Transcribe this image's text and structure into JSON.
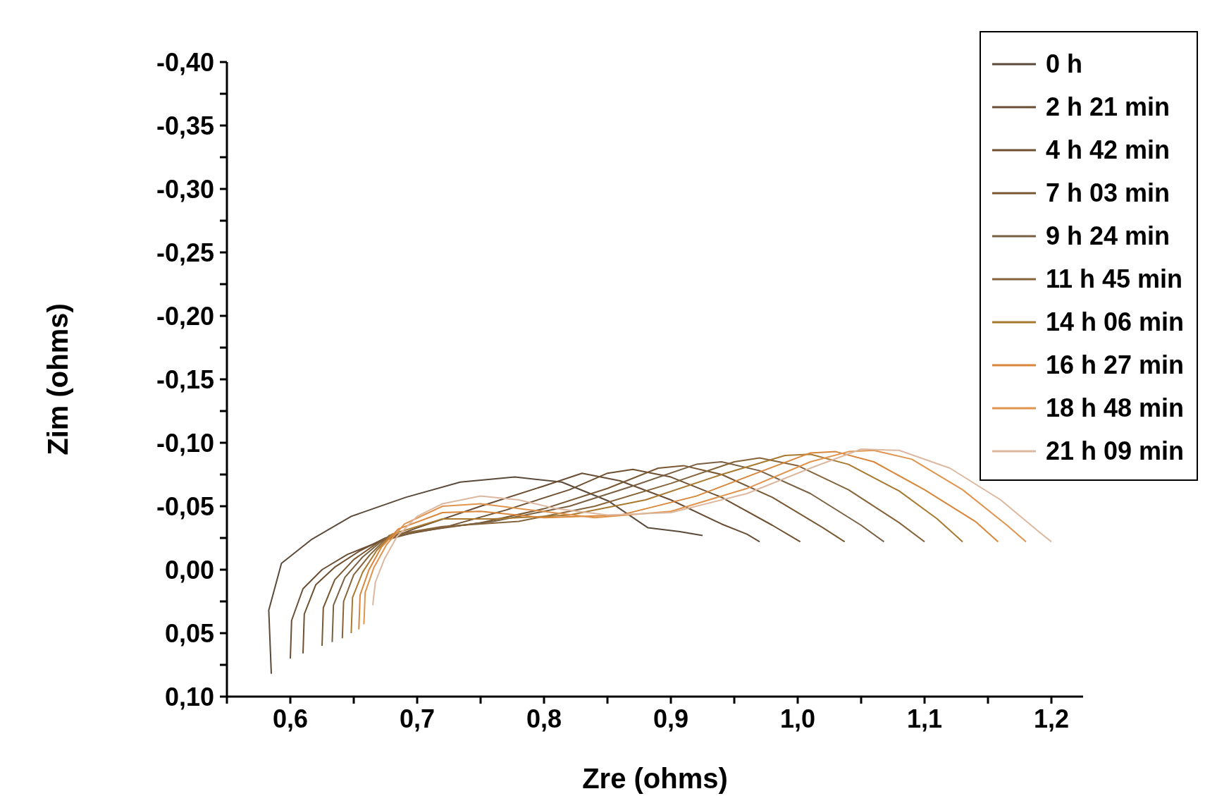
{
  "chart_data": {
    "type": "line",
    "xlabel": "Zre (ohms)",
    "ylabel": "Zim (ohms)",
    "xlim": [
      0.55,
      1.225
    ],
    "ylim": [
      0.1,
      -0.4
    ],
    "xticks": [
      {
        "value": 0.55,
        "label": null
      },
      {
        "value": 0.6,
        "label": "0,6"
      },
      {
        "value": 0.65,
        "label": null
      },
      {
        "value": 0.7,
        "label": "0,7"
      },
      {
        "value": 0.75,
        "label": null
      },
      {
        "value": 0.8,
        "label": "0,8"
      },
      {
        "value": 0.85,
        "label": null
      },
      {
        "value": 0.9,
        "label": "0,9"
      },
      {
        "value": 0.95,
        "label": null
      },
      {
        "value": 1.0,
        "label": "1,0"
      },
      {
        "value": 1.05,
        "label": null
      },
      {
        "value": 1.1,
        "label": "1,1"
      },
      {
        "value": 1.15,
        "label": null
      },
      {
        "value": 1.2,
        "label": "1,2"
      }
    ],
    "yticks": [
      {
        "value": -0.4,
        "label": "-0,40"
      },
      {
        "value": -0.375,
        "label": null
      },
      {
        "value": -0.35,
        "label": "-0,35"
      },
      {
        "value": -0.325,
        "label": null
      },
      {
        "value": -0.3,
        "label": "-0,30"
      },
      {
        "value": -0.275,
        "label": null
      },
      {
        "value": -0.25,
        "label": "-0,25"
      },
      {
        "value": -0.225,
        "label": null
      },
      {
        "value": -0.2,
        "label": "-0,20"
      },
      {
        "value": -0.175,
        "label": null
      },
      {
        "value": -0.15,
        "label": "-0,15"
      },
      {
        "value": -0.125,
        "label": null
      },
      {
        "value": -0.1,
        "label": "-0,10"
      },
      {
        "value": -0.075,
        "label": null
      },
      {
        "value": -0.05,
        "label": "-0,05"
      },
      {
        "value": -0.025,
        "label": null
      },
      {
        "value": 0,
        "label": "0,00"
      },
      {
        "value": 0.025,
        "label": null
      },
      {
        "value": 0.05,
        "label": "0,05"
      },
      {
        "value": 0.075,
        "label": null
      },
      {
        "value": 0.1,
        "label": "0,10"
      }
    ],
    "legend": "top right",
    "line_style": "solid",
    "series": [
      {
        "name": "0 h",
        "color": "#5b4a3a",
        "x": [
          0.585,
          0.583,
          0.593,
          0.617,
          0.648,
          0.691,
          0.734,
          0.777,
          0.814,
          0.851,
          0.882,
          0.907,
          0.925
        ],
        "values": [
          0.082,
          0.032,
          -0.005,
          -0.024,
          -0.042,
          -0.057,
          -0.069,
          -0.073,
          -0.069,
          -0.054,
          -0.033,
          -0.03,
          -0.027
        ]
      },
      {
        "name": "2 h 21 min",
        "color": "#694d34",
        "x": [
          0.6,
          0.601,
          0.61,
          0.625,
          0.645,
          0.67,
          0.7,
          0.75,
          0.8,
          0.83,
          0.86,
          0.9,
          0.94,
          0.96,
          0.97
        ],
        "values": [
          0.07,
          0.04,
          0.015,
          0,
          -0.012,
          -0.022,
          -0.033,
          -0.05,
          -0.066,
          -0.076,
          -0.07,
          -0.055,
          -0.036,
          -0.028,
          -0.022
        ]
      },
      {
        "name": "4 h 42 min",
        "color": "#6e5030",
        "x": [
          0.61,
          0.611,
          0.62,
          0.635,
          0.655,
          0.675,
          0.72,
          0.77,
          0.82,
          0.85,
          0.87,
          0.9,
          0.94,
          0.98,
          1.002
        ],
        "values": [
          0.066,
          0.035,
          0.012,
          -0.002,
          -0.015,
          -0.025,
          -0.033,
          -0.047,
          -0.063,
          -0.076,
          -0.079,
          -0.073,
          -0.057,
          -0.035,
          -0.022
        ]
      },
      {
        "name": "7 h 03 min",
        "color": "#785832",
        "x": [
          0.625,
          0.626,
          0.635,
          0.65,
          0.67,
          0.7,
          0.75,
          0.8,
          0.85,
          0.89,
          0.91,
          0.94,
          0.98,
          1.02,
          1.037
        ],
        "values": [
          0.06,
          0.03,
          0.008,
          -0.008,
          -0.022,
          -0.03,
          -0.037,
          -0.048,
          -0.064,
          -0.08,
          -0.082,
          -0.075,
          -0.057,
          -0.033,
          -0.022
        ]
      },
      {
        "name": "9 h 24 min",
        "color": "#7a6042",
        "x": [
          0.633,
          0.634,
          0.643,
          0.657,
          0.675,
          0.71,
          0.76,
          0.82,
          0.87,
          0.92,
          0.94,
          0.97,
          1.01,
          1.05,
          1.068
        ],
        "values": [
          0.057,
          0.028,
          0.006,
          -0.01,
          -0.025,
          -0.032,
          -0.038,
          -0.05,
          -0.066,
          -0.083,
          -0.085,
          -0.078,
          -0.06,
          -0.035,
          -0.022
        ]
      },
      {
        "name": "11 h 45 min",
        "color": "#86643a",
        "x": [
          0.641,
          0.642,
          0.65,
          0.663,
          0.678,
          0.72,
          0.78,
          0.84,
          0.9,
          0.95,
          0.97,
          1.0,
          1.04,
          1.08,
          1.1
        ],
        "values": [
          0.054,
          0.025,
          0.004,
          -0.012,
          -0.027,
          -0.034,
          -0.038,
          -0.05,
          -0.068,
          -0.085,
          -0.088,
          -0.082,
          -0.063,
          -0.037,
          -0.022
        ]
      },
      {
        "name": "14 h 06 min",
        "color": "#a87a30",
        "x": [
          0.648,
          0.649,
          0.657,
          0.668,
          0.68,
          0.72,
          0.76,
          0.82,
          0.88,
          0.94,
          0.99,
          1.01,
          1.04,
          1.08,
          1.11,
          1.13
        ],
        "values": [
          0.05,
          0.022,
          0.002,
          -0.015,
          -0.028,
          -0.04,
          -0.04,
          -0.043,
          -0.055,
          -0.075,
          -0.09,
          -0.091,
          -0.083,
          -0.062,
          -0.04,
          -0.022
        ]
      },
      {
        "name": "16 h 27 min",
        "color": "#d8863a",
        "x": [
          0.654,
          0.655,
          0.662,
          0.672,
          0.685,
          0.72,
          0.75,
          0.8,
          0.86,
          0.92,
          0.97,
          1.01,
          1.03,
          1.06,
          1.1,
          1.14,
          1.158
        ],
        "values": [
          0.047,
          0.02,
          0,
          -0.018,
          -0.032,
          -0.045,
          -0.046,
          -0.041,
          -0.043,
          -0.058,
          -0.077,
          -0.092,
          -0.093,
          -0.085,
          -0.063,
          -0.038,
          -0.022
        ]
      },
      {
        "name": "18 h 48 min",
        "color": "#e0944e",
        "x": [
          0.658,
          0.659,
          0.666,
          0.676,
          0.69,
          0.72,
          0.75,
          0.79,
          0.84,
          0.9,
          0.96,
          1.01,
          1.04,
          1.06,
          1.09,
          1.13,
          1.165,
          1.18
        ],
        "values": [
          0.043,
          0.018,
          -0.002,
          -0.02,
          -0.036,
          -0.05,
          -0.052,
          -0.047,
          -0.041,
          -0.046,
          -0.064,
          -0.085,
          -0.093,
          -0.094,
          -0.087,
          -0.063,
          -0.035,
          -0.022
        ]
      },
      {
        "name": "21 h 09 min",
        "color": "#dcb8a0",
        "x": [
          0.665,
          0.667,
          0.674,
          0.684,
          0.7,
          0.72,
          0.75,
          0.78,
          0.81,
          0.85,
          0.9,
          0.96,
          1.01,
          1.05,
          1.08,
          1.12,
          1.16,
          1.19,
          1.2
        ],
        "values": [
          0.028,
          0.01,
          -0.008,
          -0.026,
          -0.042,
          -0.052,
          -0.058,
          -0.055,
          -0.048,
          -0.043,
          -0.045,
          -0.06,
          -0.08,
          -0.095,
          -0.094,
          -0.08,
          -0.055,
          -0.03,
          -0.022
        ]
      }
    ]
  }
}
